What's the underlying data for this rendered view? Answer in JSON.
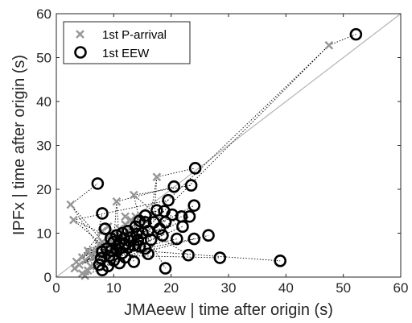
{
  "chart_data": {
    "type": "scatter",
    "title": "",
    "xlabel": "JMAeew | time after origin (s)",
    "ylabel": "IPFx | time after origin (s)",
    "xlim": [
      0,
      60
    ],
    "ylim": [
      0,
      60
    ],
    "xticks": [
      "0",
      "10",
      "20",
      "30",
      "40",
      "50",
      "60"
    ],
    "yticks": [
      "0",
      "10",
      "20",
      "30",
      "40",
      "50",
      "60"
    ],
    "grid": false,
    "legend_position": "top-left",
    "reference_line": {
      "from": [
        0,
        0
      ],
      "to": [
        60,
        60
      ],
      "color": "#b4b4b4"
    },
    "connector_color": "#000000",
    "series": [
      {
        "name": "1st P-arrival",
        "marker": "x",
        "color": "#969696",
        "points": [
          [
            47.5,
            52.8
          ],
          [
            2.5,
            16.5
          ],
          [
            3.0,
            13.0
          ],
          [
            10.5,
            17.2
          ],
          [
            13.5,
            18.7
          ],
          [
            17.5,
            22.8
          ],
          [
            5.5,
            6.0
          ],
          [
            4.5,
            4.5
          ],
          [
            3.5,
            3.5
          ],
          [
            4.0,
            2.8
          ],
          [
            5.0,
            3.8
          ],
          [
            6.0,
            2.5
          ],
          [
            5.5,
            1.5
          ],
          [
            4.5,
            0.8
          ],
          [
            3.2,
            2.0
          ],
          [
            6.5,
            4.5
          ],
          [
            7.0,
            6.0
          ],
          [
            7.5,
            7.5
          ],
          [
            8.0,
            8.0
          ],
          [
            9.0,
            9.0
          ],
          [
            10.0,
            10.0
          ],
          [
            11.0,
            11.0
          ],
          [
            12.0,
            12.0
          ],
          [
            13.0,
            13.0
          ],
          [
            13.8,
            13.8
          ],
          [
            12.0,
            13.8
          ],
          [
            8.5,
            5.0
          ],
          [
            9.5,
            6.5
          ],
          [
            10.5,
            8.0
          ],
          [
            6.0,
            5.0
          ],
          [
            7.0,
            3.5
          ],
          [
            5.0,
            0.3
          ],
          [
            8.0,
            10.5
          ],
          [
            11.5,
            9.0
          ],
          [
            12.5,
            10.5
          ],
          [
            9.0,
            11.5
          ]
        ]
      },
      {
        "name": "1st EEW",
        "marker": "o",
        "color": "#000000",
        "points": [
          [
            52.2,
            55.3
          ],
          [
            7.2,
            21.3
          ],
          [
            24.2,
            24.8
          ],
          [
            23.5,
            20.9
          ],
          [
            20.5,
            20.6
          ],
          [
            19.5,
            17.5
          ],
          [
            24.0,
            16.3
          ],
          [
            17.5,
            15.2
          ],
          [
            18.8,
            15.0
          ],
          [
            8.0,
            14.5
          ],
          [
            15.5,
            14.0
          ],
          [
            20.2,
            14.2
          ],
          [
            21.8,
            13.8
          ],
          [
            23.2,
            13.8
          ],
          [
            22.0,
            11.5
          ],
          [
            26.5,
            9.5
          ],
          [
            24.0,
            8.7
          ],
          [
            21.0,
            8.7
          ],
          [
            18.5,
            9.5
          ],
          [
            16.5,
            8.5
          ],
          [
            18.0,
            11.0
          ],
          [
            15.5,
            12.5
          ],
          [
            14.5,
            12.8
          ],
          [
            13.8,
            11.5
          ],
          [
            12.5,
            10.5
          ],
          [
            11.5,
            10.0
          ],
          [
            10.5,
            9.5
          ],
          [
            9.5,
            8.8
          ],
          [
            13.0,
            9.0
          ],
          [
            14.2,
            8.5
          ],
          [
            16.0,
            10.5
          ],
          [
            17.0,
            12.5
          ],
          [
            19.0,
            12.5
          ],
          [
            15.0,
            10.0
          ],
          [
            10.0,
            8.0
          ],
          [
            11.0,
            7.8
          ],
          [
            12.0,
            7.5
          ],
          [
            8.8,
            6.5
          ],
          [
            9.5,
            6.0
          ],
          [
            8.0,
            5.8
          ],
          [
            10.5,
            6.3
          ],
          [
            11.5,
            5.5
          ],
          [
            12.5,
            6.8
          ],
          [
            13.5,
            7.2
          ],
          [
            8.5,
            11.0
          ],
          [
            7.5,
            2.8
          ],
          [
            8.0,
            1.6
          ],
          [
            9.0,
            2.5
          ],
          [
            10.0,
            3.8
          ],
          [
            11.0,
            3.2
          ],
          [
            12.0,
            4.5
          ],
          [
            13.5,
            3.5
          ],
          [
            16.0,
            5.3
          ],
          [
            19.0,
            2.0
          ],
          [
            23.0,
            5.0
          ],
          [
            28.5,
            4.4
          ],
          [
            39.0,
            3.7
          ],
          [
            7.8,
            4.3
          ],
          [
            9.2,
            4.8
          ],
          [
            14.5,
            7.0
          ],
          [
            15.5,
            6.5
          ],
          [
            10.8,
            7.0
          ],
          [
            12.8,
            8.2
          ],
          [
            14.0,
            9.8
          ],
          [
            11.8,
            8.8
          ]
        ]
      }
    ],
    "pairs": [
      [
        0,
        0
      ],
      [
        1,
        1
      ],
      [
        5,
        2
      ],
      [
        4,
        3
      ],
      [
        3,
        4
      ],
      [
        2,
        5
      ],
      [
        14,
        6
      ],
      [
        14,
        8
      ],
      [
        13,
        7
      ],
      [
        13,
        10
      ],
      [
        11,
        9
      ],
      [
        12,
        11
      ],
      [
        12,
        12
      ],
      [
        12,
        13
      ],
      [
        11,
        14
      ],
      [
        11,
        15
      ],
      [
        10,
        16
      ],
      [
        10,
        17
      ],
      [
        9,
        18
      ],
      [
        9,
        19
      ],
      [
        9,
        20
      ],
      [
        9,
        21
      ],
      [
        9,
        22
      ],
      [
        8,
        23
      ],
      [
        8,
        24
      ],
      [
        8,
        25
      ],
      [
        7,
        26
      ],
      [
        7,
        27
      ],
      [
        6,
        28
      ],
      [
        6,
        29
      ],
      [
        5,
        30
      ],
      [
        5,
        31
      ],
      [
        4,
        32
      ],
      [
        4,
        33
      ],
      [
        3,
        34
      ],
      [
        3,
        35
      ],
      [
        2,
        36
      ],
      [
        2,
        37
      ],
      [
        1,
        38
      ],
      [
        1,
        39
      ],
      [
        0,
        40
      ],
      [
        0,
        41
      ],
      [
        10,
        42
      ],
      [
        9,
        43
      ],
      [
        8,
        44
      ],
      [
        19,
        45
      ],
      [
        19,
        46
      ],
      [
        18,
        47
      ],
      [
        20,
        48
      ],
      [
        20,
        49
      ],
      [
        21,
        50
      ],
      [
        22,
        51
      ],
      [
        23,
        52
      ],
      [
        24,
        53
      ],
      [
        25,
        54
      ],
      [
        26,
        55
      ],
      [
        27,
        56
      ],
      [
        28,
        57
      ],
      [
        29,
        58
      ],
      [
        30,
        59
      ],
      [
        31,
        60
      ],
      [
        32,
        61
      ],
      [
        33,
        62
      ],
      [
        34,
        63
      ],
      [
        35,
        64
      ]
    ]
  }
}
